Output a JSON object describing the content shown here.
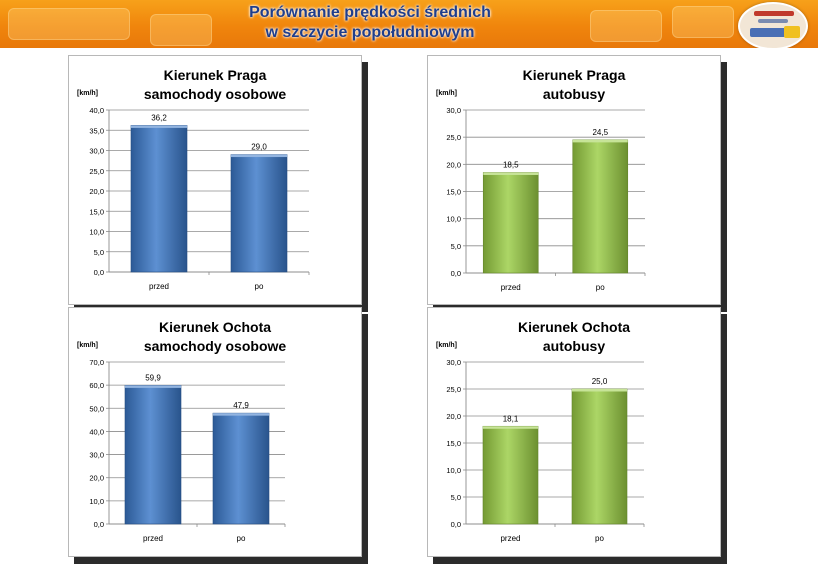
{
  "header": {
    "title_line1": "Porównanie prędkości średnich",
    "title_line2": "w szczycie popołudniowym"
  },
  "colors": {
    "banner": "#f0850c",
    "title_text": "#1f3e8c",
    "car_bar": "#3a78c8",
    "bus_bar": "#9acd44"
  },
  "chart_data": [
    {
      "type": "bar",
      "title_line1": "Kierunek Praga",
      "title_line2": "samochody osobowe",
      "ylabel": "[km/h]",
      "categories": [
        "przed",
        "po"
      ],
      "values": [
        36.2,
        29.0
      ],
      "value_labels": [
        "36,2",
        "29,0"
      ],
      "ylim": [
        0,
        40
      ],
      "yticks": [
        "0,0",
        "5,0",
        "10,0",
        "15,0",
        "20,0",
        "25,0",
        "30,0",
        "35,0",
        "40,0"
      ],
      "color": "#3a78c8",
      "grid": true
    },
    {
      "type": "bar",
      "title_line1": "Kierunek Praga",
      "title_line2": "autobusy",
      "ylabel": "[km/h]",
      "categories": [
        "przed",
        "po"
      ],
      "values": [
        18.5,
        24.5
      ],
      "value_labels": [
        "18,5",
        "24,5"
      ],
      "ylim": [
        0,
        30
      ],
      "yticks": [
        "0,0",
        "5,0",
        "10,0",
        "15,0",
        "20,0",
        "25,0",
        "30,0"
      ],
      "color": "#9acd44",
      "grid": true
    },
    {
      "type": "bar",
      "title_line1": "Kierunek Ochota",
      "title_line2": "samochody osobowe",
      "ylabel": "[km/h]",
      "categories": [
        "przed",
        "po"
      ],
      "values": [
        59.9,
        47.9
      ],
      "value_labels": [
        "59,9",
        "47,9"
      ],
      "ylim": [
        0,
        70
      ],
      "yticks": [
        "0,0",
        "10,0",
        "20,0",
        "30,0",
        "40,0",
        "50,0",
        "60,0",
        "70,0"
      ],
      "color": "#3a78c8",
      "grid": true
    },
    {
      "type": "bar",
      "title_line1": "Kierunek Ochota",
      "title_line2": "autobusy",
      "ylabel": "[km/h]",
      "categories": [
        "przed",
        "po"
      ],
      "values": [
        18.1,
        25.0
      ],
      "value_labels": [
        "18,1",
        "25,0"
      ],
      "ylim": [
        0,
        30
      ],
      "yticks": [
        "0,0",
        "5,0",
        "10,0",
        "15,0",
        "20,0",
        "25,0",
        "30,0"
      ],
      "color": "#9acd44",
      "grid": true
    }
  ]
}
